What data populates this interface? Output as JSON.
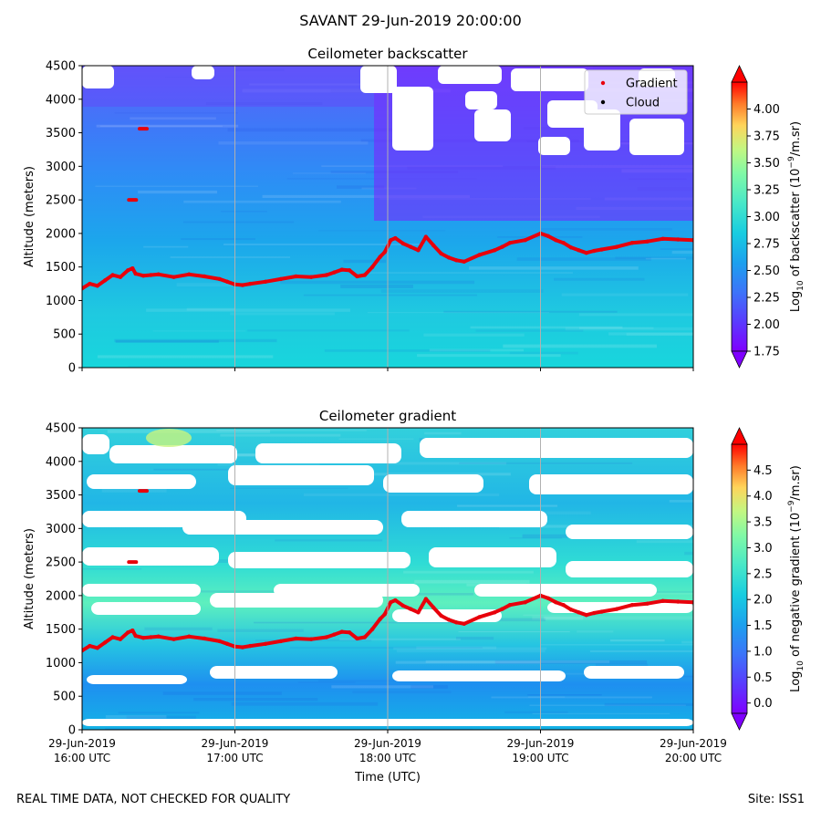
{
  "suptitle": "SAVANT 29-Jun-2019 20:00:00",
  "footer": {
    "left": "REAL TIME DATA, NOT CHECKED FOR QUALITY",
    "right": "Site: ISS1"
  },
  "colors": {
    "gradient_marker": "#e8000b",
    "cloud_marker": "#000000",
    "grid": "#b0b0b0",
    "colormap": [
      "#7f00ff",
      "#5a3cfe",
      "#3c74f9",
      "#1ca1ee",
      "#18cde0",
      "#48e8c8",
      "#80f9a6",
      "#c2f782",
      "#ffd45a",
      "#ff9a35",
      "#ff4b1a",
      "#ff0000"
    ]
  },
  "chart_data": [
    {
      "type": "heatmap",
      "title": "Ceilometer backscatter",
      "xlabel": "",
      "ylabel": "Altitude (meters)",
      "ylim": [
        0,
        4500
      ],
      "yticks": [
        0,
        500,
        1000,
        1500,
        2000,
        2500,
        3000,
        3500,
        4000,
        4500
      ],
      "xlim": [
        16,
        20
      ],
      "xticks": [
        16,
        17,
        18,
        19,
        20
      ],
      "xtick_labels": [],
      "colorbar": {
        "label": "Log10 of backscatter (10^-9/m.sr)",
        "label_parts": [
          "Log",
          "10",
          " of backscatter (10",
          "−9",
          "/m.sr)"
        ],
        "range": [
          1.75,
          4.25
        ],
        "ticks": [
          "1.75",
          "2.00",
          "2.25",
          "2.50",
          "2.75",
          "3.00",
          "3.25",
          "3.50",
          "3.75",
          "4.00"
        ]
      },
      "legend": {
        "position": "top-right",
        "entries": [
          {
            "label": "Gradient",
            "color": "#e8000b"
          },
          {
            "label": "Cloud",
            "color": "#000000"
          }
        ]
      }
    },
    {
      "type": "heatmap",
      "title": "Ceilometer gradient",
      "xlabel": "Time (UTC)",
      "ylabel": "Altitude (meters)",
      "ylim": [
        0,
        4500
      ],
      "yticks": [
        0,
        500,
        1000,
        1500,
        2000,
        2500,
        3000,
        3500,
        4000,
        4500
      ],
      "xlim": [
        16,
        20
      ],
      "xticks": [
        16,
        17,
        18,
        19,
        20
      ],
      "xtick_labels": [
        [
          "29-Jun-2019",
          "16:00 UTC"
        ],
        [
          "29-Jun-2019",
          "17:00 UTC"
        ],
        [
          "29-Jun-2019",
          "18:00 UTC"
        ],
        [
          "29-Jun-2019",
          "19:00 UTC"
        ],
        [
          "29-Jun-2019",
          "20:00 UTC"
        ]
      ],
      "colorbar": {
        "label": "Log10 of negative gradient (10^-9/m.sr)",
        "label_parts": [
          "Log",
          "10",
          " of negative gradient (10",
          "−9",
          "/m.sr)"
        ],
        "range": [
          -0.2,
          5.0
        ],
        "ticks": [
          "0.0",
          "0.5",
          "1.0",
          "1.5",
          "2.0",
          "2.5",
          "3.0",
          "3.5",
          "4.0",
          "4.5"
        ]
      }
    }
  ],
  "gradient_series": {
    "name": "Gradient",
    "time_hours": [
      16.0,
      16.05,
      16.1,
      16.15,
      16.2,
      16.25,
      16.3,
      16.33,
      16.35,
      16.4,
      16.45,
      16.5,
      16.6,
      16.7,
      16.8,
      16.9,
      16.95,
      17.0,
      17.05,
      17.1,
      17.2,
      17.3,
      17.4,
      17.5,
      17.6,
      17.65,
      17.7,
      17.75,
      17.8,
      17.85,
      17.9,
      17.95,
      17.98,
      18.02,
      18.05,
      18.1,
      18.15,
      18.2,
      18.25,
      18.3,
      18.35,
      18.4,
      18.45,
      18.5,
      18.6,
      18.7,
      18.75,
      18.8,
      18.9,
      19.0,
      19.05,
      19.1,
      19.15,
      19.2,
      19.25,
      19.3,
      19.35,
      19.4,
      19.5,
      19.6,
      19.7,
      19.8,
      19.9,
      20.0
    ],
    "altitude_m": [
      1180,
      1250,
      1220,
      1300,
      1380,
      1350,
      1450,
      1480,
      1400,
      1370,
      1380,
      1390,
      1350,
      1390,
      1360,
      1320,
      1280,
      1240,
      1230,
      1250,
      1280,
      1320,
      1360,
      1350,
      1380,
      1420,
      1460,
      1450,
      1360,
      1380,
      1500,
      1650,
      1720,
      1900,
      1930,
      1850,
      1800,
      1750,
      1950,
      1820,
      1700,
      1640,
      1600,
      1580,
      1680,
      1750,
      1800,
      1860,
      1900,
      2000,
      1960,
      1900,
      1860,
      1790,
      1750,
      1710,
      1740,
      1760,
      1800,
      1860,
      1880,
      1920,
      1910,
      1900
    ]
  },
  "gradient_markers": [
    {
      "time_hours": 16.4,
      "altitude_m": 3560
    },
    {
      "time_hours": 16.33,
      "altitude_m": 2500
    }
  ]
}
